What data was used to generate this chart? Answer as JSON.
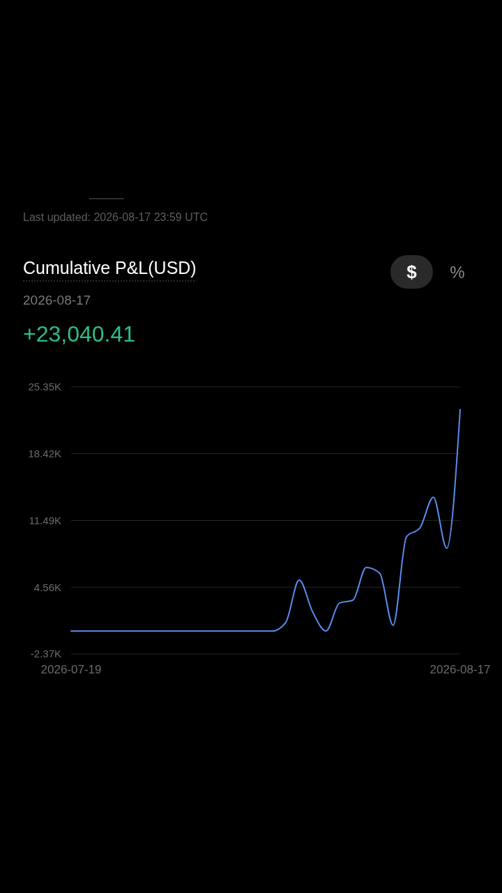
{
  "chart_data": {
    "type": "line",
    "title": "Cumulative P&L(USD)",
    "subtitle": "2026-08-17",
    "annotations": [
      "Last updated: 2026-08-17 23:59 UTC",
      "+23,040.41",
      "$",
      "%"
    ],
    "x": [
      "2026-07-19",
      "2026-07-20",
      "2026-07-21",
      "2026-07-22",
      "2026-07-23",
      "2026-07-24",
      "2026-07-25",
      "2026-07-26",
      "2026-07-27",
      "2026-07-28",
      "2026-07-29",
      "2026-07-30",
      "2026-07-31",
      "2026-08-01",
      "2026-08-02",
      "2026-08-03",
      "2026-08-04",
      "2026-08-05",
      "2026-08-06",
      "2026-08-07",
      "2026-08-08",
      "2026-08-09",
      "2026-08-10",
      "2026-08-11",
      "2026-08-12",
      "2026-08-13",
      "2026-08-14",
      "2026-08-15",
      "2026-08-16",
      "2026-08-17"
    ],
    "values": [
      0,
      0,
      0,
      0,
      0,
      0,
      0,
      0,
      0,
      0,
      0,
      0,
      0,
      0,
      0,
      0,
      900,
      5300,
      2000,
      0,
      2900,
      3200,
      6600,
      6000,
      600,
      9800,
      10700,
      13900,
      8600,
      23000
    ],
    "color": "#5a8dee",
    "line_style": "solid",
    "xlim": [
      "2026-07-19",
      "2026-08-17"
    ],
    "xticks": [
      "2026-07-19",
      "2026-08-17"
    ],
    "ylim": [
      -2370,
      25350
    ],
    "yticks": [
      {
        "value": -2370,
        "label": "-2.37K"
      },
      {
        "value": 4560,
        "label": "4.56K"
      },
      {
        "value": 11490,
        "label": "11.49K"
      },
      {
        "value": 18420,
        "label": "18.42K"
      },
      {
        "value": 25350,
        "label": "25.35K"
      }
    ],
    "grid": "y"
  }
}
